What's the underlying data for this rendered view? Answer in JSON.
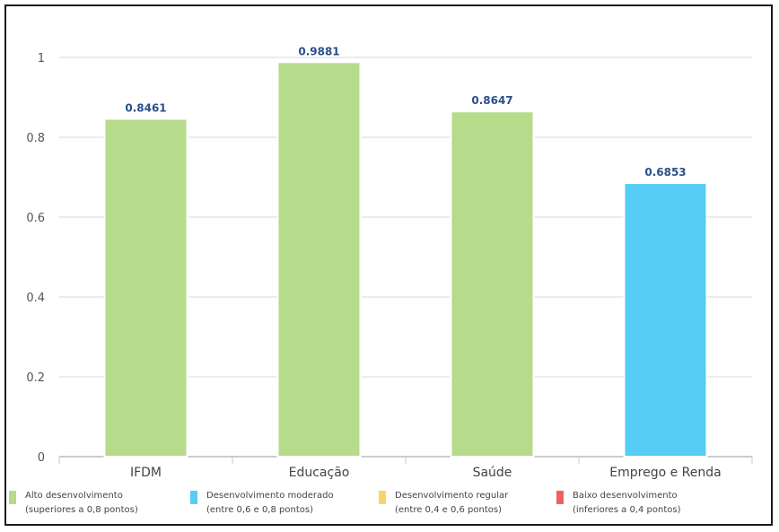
{
  "chart_data": {
    "type": "bar",
    "categories": [
      "IFDM",
      "Educação",
      "Saúde",
      "Emprego e Renda"
    ],
    "values": [
      0.8461,
      0.9881,
      0.8647,
      0.6853
    ],
    "value_labels": [
      "0.8461",
      "0.9881",
      "0.8647",
      "0.6853"
    ],
    "bar_colors": [
      "#b5db8b",
      "#b5db8b",
      "#b5db8b",
      "#55cdf5"
    ],
    "ylim": [
      0,
      1
    ],
    "yticks": [
      0,
      0.2,
      0.4,
      0.6,
      0.8,
      1
    ],
    "ytick_labels": [
      "0",
      "0.2",
      "0.4",
      "0.6",
      "0.8",
      "1"
    ],
    "grid": true,
    "legend_position": "bottom",
    "legend": [
      {
        "color": "#b5db8b",
        "label": "Alto desenvolvimento",
        "sublabel": "(superiores a 0,8 pontos)"
      },
      {
        "color": "#55cdf5",
        "label": "Desenvolvimento moderado",
        "sublabel": "(entre 0,6 e 0,8 pontos)"
      },
      {
        "color": "#f7d56b",
        "label": "Desenvolvimento regular",
        "sublabel": "(entre 0,4 e 0,6 pontos)"
      },
      {
        "color": "#f06262",
        "label": "Baixo desenvolvimento",
        "sublabel": "(inferiores a 0,4 pontos)"
      }
    ]
  }
}
